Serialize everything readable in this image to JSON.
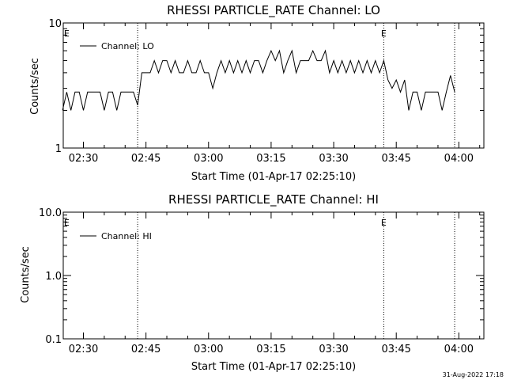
{
  "footer": {
    "timestamp": "31-Aug-2022 17:18"
  },
  "chart_data": [
    {
      "type": "line",
      "title": "RHESSI PARTICLE_RATE Channel: LO",
      "xlabel": "Start Time (01-Apr-17 02:25:10)",
      "ylabel": "Counts/sec",
      "x_range": [
        "02:25:10",
        "04:06:00"
      ],
      "ylim": [
        1,
        10
      ],
      "y_scale": "log",
      "x_ticks": [
        "02:30",
        "02:45",
        "03:00",
        "03:15",
        "03:30",
        "03:45",
        "04:00"
      ],
      "y_ticks": [
        "1",
        "10"
      ],
      "legend": {
        "entries": [
          "Channel: LO"
        ],
        "placement": "top-left"
      },
      "markers": [
        {
          "label": "E",
          "x": "02:26"
        },
        {
          "label": "E",
          "x": "03:42"
        }
      ],
      "vertical_lines": [
        "02:43",
        "03:42",
        "03:59"
      ],
      "series": [
        {
          "name": "Channel: LO",
          "x": [
            "02:25",
            "02:26",
            "02:27",
            "02:28",
            "02:29",
            "02:30",
            "02:31",
            "02:32",
            "02:33",
            "02:34",
            "02:35",
            "02:36",
            "02:37",
            "02:38",
            "02:39",
            "02:40",
            "02:41",
            "02:42",
            "02:43",
            "02:44",
            "02:45",
            "02:46",
            "02:47",
            "02:48",
            "02:49",
            "02:50",
            "02:51",
            "02:52",
            "02:53",
            "02:54",
            "02:55",
            "02:56",
            "02:57",
            "02:58",
            "02:59",
            "03:00",
            "03:01",
            "03:02",
            "03:03",
            "03:04",
            "03:05",
            "03:06",
            "03:07",
            "03:08",
            "03:09",
            "03:10",
            "03:11",
            "03:12",
            "03:13",
            "03:14",
            "03:15",
            "03:16",
            "03:17",
            "03:18",
            "03:19",
            "03:20",
            "03:21",
            "03:22",
            "03:23",
            "03:24",
            "03:25",
            "03:26",
            "03:27",
            "03:28",
            "03:29",
            "03:30",
            "03:31",
            "03:32",
            "03:33",
            "03:34",
            "03:35",
            "03:36",
            "03:37",
            "03:38",
            "03:39",
            "03:40",
            "03:41",
            "03:42",
            "03:43",
            "03:44",
            "03:45",
            "03:46",
            "03:47",
            "03:48",
            "03:49",
            "03:50",
            "03:51",
            "03:52",
            "03:53",
            "03:54",
            "03:55",
            "03:56",
            "03:57",
            "03:58",
            "03:59"
          ],
          "y": [
            2,
            2.8,
            2,
            2.8,
            2.8,
            2,
            2.8,
            2.8,
            2.8,
            2.8,
            2,
            2.8,
            2.8,
            2,
            2.8,
            2.8,
            2.8,
            2.8,
            2.2,
            4,
            4,
            4,
            5,
            4,
            5,
            5,
            4,
            5,
            4,
            4,
            5,
            4,
            4,
            5,
            4,
            4,
            3,
            4,
            5,
            4,
            5,
            4,
            5,
            4,
            5,
            4,
            5,
            5,
            4,
            5,
            6,
            5,
            6,
            4,
            5,
            6,
            4,
            5,
            5,
            5,
            6,
            5,
            5,
            6,
            4,
            5,
            4,
            5,
            4,
            5,
            4,
            5,
            4,
            5,
            4,
            5,
            4,
            5,
            3.5,
            3,
            3.5,
            2.8,
            3.5,
            2,
            2.8,
            2.8,
            2,
            2.8,
            2.8,
            2.8,
            2.8,
            2,
            2.8,
            3.8,
            2.8
          ]
        }
      ]
    },
    {
      "type": "line",
      "title": "RHESSI PARTICLE_RATE Channel: HI",
      "xlabel": "Start Time (01-Apr-17 02:25:10)",
      "ylabel": "Counts/sec",
      "x_range": [
        "02:25:10",
        "04:06:00"
      ],
      "ylim": [
        0.1,
        10
      ],
      "y_scale": "log",
      "x_ticks": [
        "02:30",
        "02:45",
        "03:00",
        "03:15",
        "03:30",
        "03:45",
        "04:00"
      ],
      "y_ticks": [
        "0.1",
        "1.0",
        "10.0"
      ],
      "legend": {
        "entries": [
          "Channel: HI"
        ],
        "placement": "top-left"
      },
      "markers": [
        {
          "label": "E",
          "x": "02:26"
        },
        {
          "label": "E",
          "x": "03:42"
        }
      ],
      "vertical_lines": [
        "02:43",
        "03:42",
        "03:59"
      ],
      "series": [
        {
          "name": "Channel: HI",
          "x": [],
          "y": []
        }
      ]
    }
  ]
}
